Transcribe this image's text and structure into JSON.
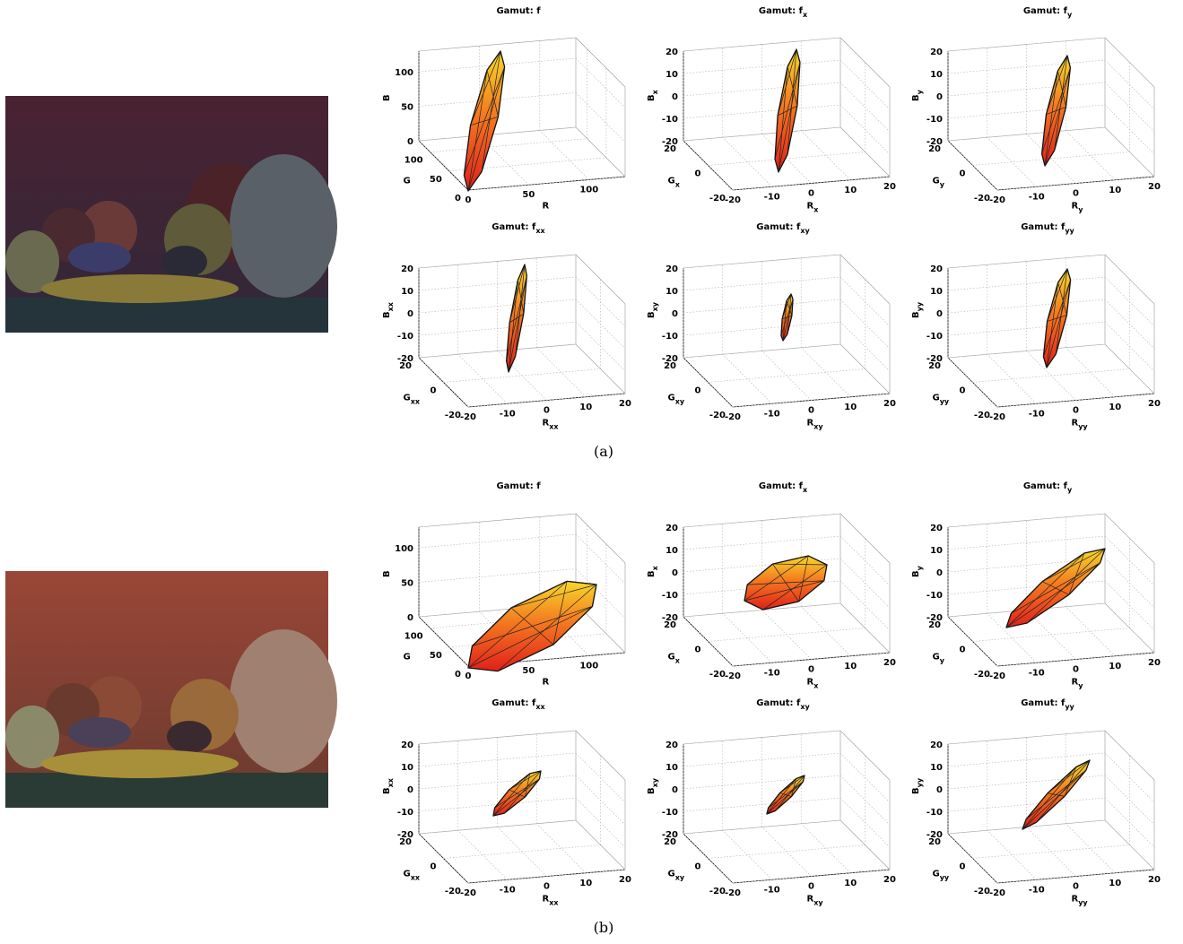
{
  "panels": [
    {
      "label": "(a)",
      "plots": [
        {
          "title": "Gamut: f",
          "axes": [
            "R",
            "G",
            "B"
          ],
          "rticks": [
            0,
            50,
            100
          ],
          "gticks": [
            100,
            50,
            0
          ],
          "bticks": [
            100,
            50,
            0
          ]
        },
        {
          "title": "Gamut: f",
          "sub": "x",
          "axes": [
            "R",
            "G",
            "B"
          ],
          "rticks": [
            -20,
            -10,
            0,
            10,
            20
          ],
          "gticks": [
            20,
            0,
            -20
          ],
          "bticks": [
            20,
            10,
            0,
            -10,
            -20
          ]
        },
        {
          "title": "Gamut: f",
          "sub": "y",
          "axes": [
            "R",
            "G",
            "B"
          ],
          "rticks": [
            -20,
            -10,
            0,
            10,
            20
          ],
          "gticks": [
            20,
            0,
            -20
          ],
          "bticks": [
            20,
            10,
            0,
            -10,
            -20
          ]
        },
        {
          "title": "Gamut: f",
          "sub": "xx",
          "axes": [
            "R",
            "G",
            "B"
          ],
          "rticks": [
            -20,
            -10,
            0,
            10,
            20
          ],
          "gticks": [
            20,
            0,
            -20
          ],
          "bticks": [
            20,
            10,
            0,
            -10,
            -20
          ]
        },
        {
          "title": "Gamut: f",
          "sub": "xy",
          "axes": [
            "R",
            "G",
            "B"
          ],
          "rticks": [
            -20,
            -10,
            0,
            10,
            20
          ],
          "gticks": [
            20,
            0,
            -20
          ],
          "bticks": [
            20,
            10,
            0,
            -10,
            -20
          ]
        },
        {
          "title": "Gamut: f",
          "sub": "yy",
          "axes": [
            "R",
            "G",
            "B"
          ],
          "rticks": [
            -20,
            -10,
            0,
            10,
            20
          ],
          "gticks": [
            20,
            0,
            -20
          ],
          "bticks": [
            20,
            10,
            0,
            -10,
            -20
          ]
        }
      ]
    },
    {
      "label": "(b)",
      "plots": [
        {
          "title": "Gamut: f",
          "axes": [
            "R",
            "G",
            "B"
          ],
          "rticks": [
            0,
            50,
            100
          ],
          "gticks": [
            100,
            50,
            0
          ],
          "bticks": [
            100,
            50,
            0
          ]
        },
        {
          "title": "Gamut: f",
          "sub": "x",
          "axes": [
            "R",
            "G",
            "B"
          ],
          "rticks": [
            -20,
            -10,
            0,
            10,
            20
          ],
          "gticks": [
            20,
            0,
            -20
          ],
          "bticks": [
            20,
            10,
            0,
            -10,
            -20
          ]
        },
        {
          "title": "Gamut: f",
          "sub": "y",
          "axes": [
            "R",
            "G",
            "B"
          ],
          "rticks": [
            -20,
            -10,
            0,
            10,
            20
          ],
          "gticks": [
            20,
            0,
            -20
          ],
          "bticks": [
            20,
            10,
            0,
            -10,
            -20
          ]
        },
        {
          "title": "Gamut: f",
          "sub": "xx",
          "axes": [
            "R",
            "G",
            "B"
          ],
          "rticks": [
            -20,
            -10,
            0,
            10,
            20
          ],
          "gticks": [
            20,
            0,
            -20
          ],
          "bticks": [
            20,
            10,
            0,
            -10,
            -20
          ]
        },
        {
          "title": "Gamut: f",
          "sub": "xy",
          "axes": [
            "R",
            "G",
            "B"
          ],
          "rticks": [
            -20,
            -10,
            0,
            10,
            20
          ],
          "gticks": [
            20,
            0,
            -20
          ],
          "bticks": [
            20,
            10,
            0,
            -10,
            -20
          ]
        },
        {
          "title": "Gamut: f",
          "sub": "yy",
          "axes": [
            "R",
            "G",
            "B"
          ],
          "rticks": [
            -20,
            -10,
            0,
            10,
            20
          ],
          "gticks": [
            20,
            0,
            -20
          ],
          "bticks": [
            20,
            10,
            0,
            -10,
            -20
          ]
        }
      ]
    }
  ]
}
